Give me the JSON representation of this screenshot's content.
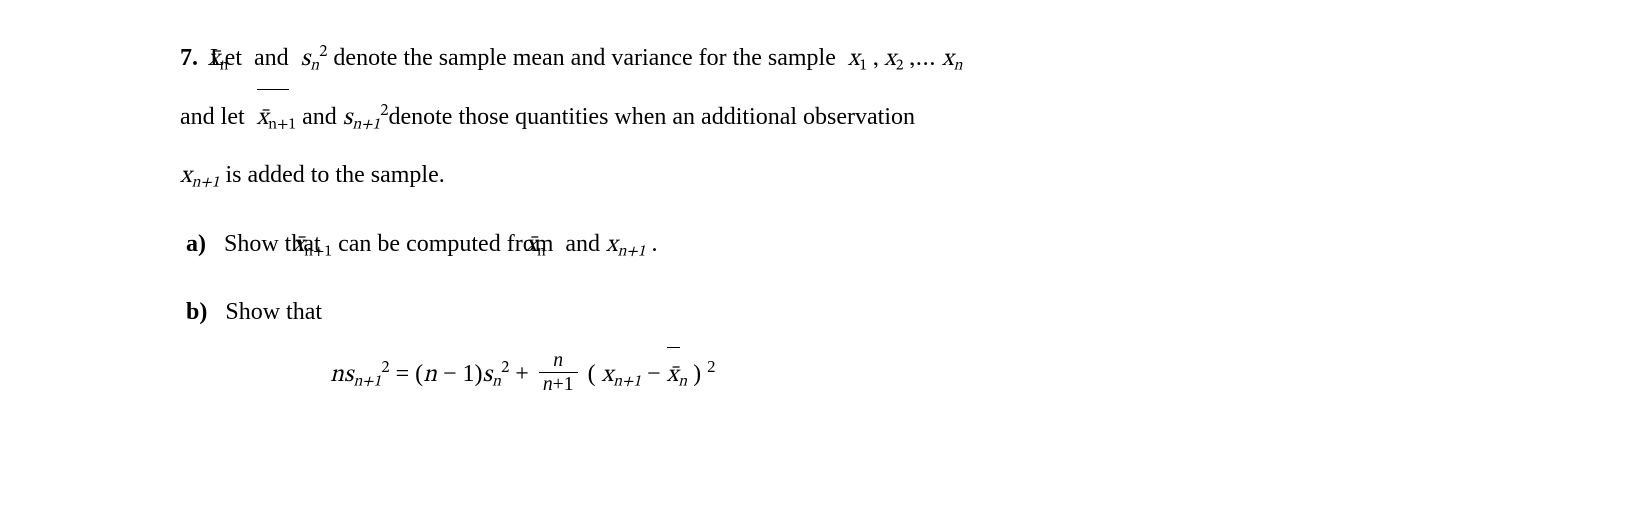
{
  "problem": {
    "number": "7.",
    "line1_part1": "Let ",
    "xbar_n": "x̄",
    "xbar_n_sub": "n",
    "and1": " and ",
    "s_var": "s",
    "s_sub": "n",
    "s_sup": "2",
    "line1_part2": "  denote the sample mean and variance for the sample ",
    "sample_seq": "x",
    "s1": "1",
    "comma": " , ",
    "s2": "2",
    "dots": " ,… ",
    "sn": "n",
    "line2_part1": "and  let ",
    "xbar_np1_sub": "n+1",
    "and2": " and ",
    "s_np1_sub": "n+1",
    "line2_part2": "denote those quantities when an additional observation",
    "line3_part1": " is added to the sample.",
    "x_np1": "x",
    "x_np1_sub": "n+1"
  },
  "partA": {
    "label": "a)",
    "text1": "Show that ",
    "text2": " can be computed from ",
    "and": " and ",
    "period": " ."
  },
  "partB": {
    "label": "b)",
    "text": "Show that"
  },
  "formula": {
    "lhs_n": "n",
    "lhs_s": "s",
    "lhs_sub": "n+1",
    "lhs_sup": "2",
    "eq": " = ",
    "lp": "(",
    "n_minus_1_n": "n",
    "minus": " − ",
    "one": "1",
    "rp": ")",
    "s2": "s",
    "s2_sub": "n",
    "s2_sup": "2",
    "plus": " + ",
    "frac_num": "n",
    "frac_den_n": "n",
    "frac_den_plus": "+",
    "frac_den_1": "1",
    "open": " ( ",
    "x": "x",
    "x_sub": "n+1",
    "minus2": " − ",
    "xbar": "x̄",
    "xbar_sub": "n",
    "close": " ) ",
    "sq": "2"
  }
}
